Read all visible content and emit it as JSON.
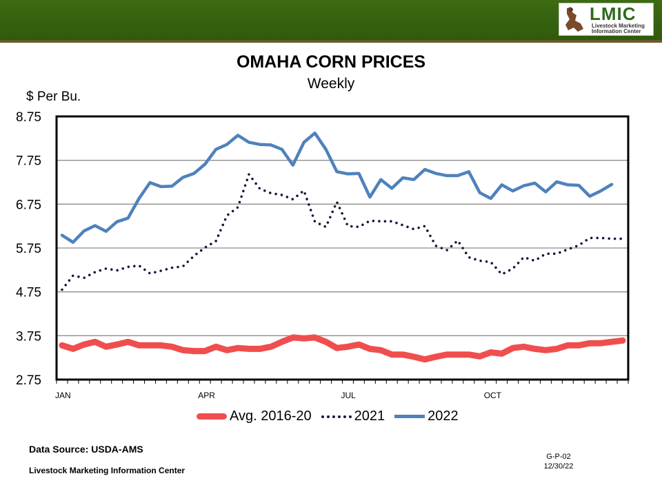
{
  "header": {
    "logo_text": "LMIC",
    "logo_subtext_1": "Livestock Marketing",
    "logo_subtext_2": "Information Center"
  },
  "chart_data": {
    "type": "line",
    "title": "OMAHA CORN PRICES",
    "subtitle": "Weekly",
    "ylabel": "$ Per Bu.",
    "ylim": [
      2.75,
      8.75
    ],
    "yticks": [
      "8.75",
      "7.75",
      "6.75",
      "5.75",
      "4.75",
      "3.75",
      "2.75"
    ],
    "xtick_labels": [
      {
        "label": "JAN",
        "week": 1
      },
      {
        "label": "APR",
        "week": 14
      },
      {
        "label": "JUL",
        "week": 27
      },
      {
        "label": "OCT",
        "week": 40
      }
    ],
    "weeks": 52,
    "grid": true,
    "legend": "bottom",
    "series": [
      {
        "name": "Avg. 2016-20",
        "color": "#f04e4e",
        "style": "thick",
        "values": [
          3.53,
          3.45,
          3.55,
          3.61,
          3.5,
          3.55,
          3.61,
          3.53,
          3.53,
          3.53,
          3.5,
          3.42,
          3.4,
          3.4,
          3.5,
          3.42,
          3.47,
          3.45,
          3.45,
          3.5,
          3.61,
          3.71,
          3.69,
          3.71,
          3.61,
          3.47,
          3.5,
          3.55,
          3.45,
          3.42,
          3.32,
          3.32,
          3.27,
          3.21,
          3.27,
          3.32,
          3.32,
          3.32,
          3.28,
          3.37,
          3.34,
          3.47,
          3.5,
          3.45,
          3.42,
          3.45,
          3.53,
          3.53,
          3.58,
          3.58,
          3.61,
          3.64
        ]
      },
      {
        "name": "2021",
        "color": "#0f1a3c",
        "style": "dotted",
        "values": [
          4.8,
          5.12,
          5.07,
          5.2,
          5.28,
          5.24,
          5.32,
          5.35,
          5.17,
          5.23,
          5.3,
          5.33,
          5.57,
          5.76,
          5.91,
          6.49,
          6.68,
          7.43,
          7.1,
          7.0,
          6.96,
          6.86,
          7.06,
          6.35,
          6.23,
          6.8,
          6.25,
          6.23,
          6.37,
          6.36,
          6.36,
          6.27,
          6.18,
          6.25,
          5.8,
          5.7,
          5.92,
          5.54,
          5.46,
          5.43,
          5.15,
          5.28,
          5.54,
          5.46,
          5.62,
          5.62,
          5.72,
          5.81,
          5.98,
          5.98,
          5.96,
          5.96
        ]
      },
      {
        "name": "2022",
        "color": "#4f81bd",
        "style": "solid",
        "values": [
          6.04,
          5.88,
          6.14,
          6.26,
          6.13,
          6.35,
          6.43,
          6.88,
          7.24,
          7.15,
          7.16,
          7.36,
          7.45,
          7.66,
          8.0,
          8.11,
          8.32,
          8.16,
          8.11,
          8.1,
          8.0,
          7.64,
          8.16,
          8.37,
          8.0,
          7.49,
          7.44,
          7.45,
          6.91,
          7.31,
          7.11,
          7.35,
          7.31,
          7.54,
          7.45,
          7.4,
          7.4,
          7.49,
          7.01,
          6.88,
          7.19,
          7.05,
          7.17,
          7.23,
          7.03,
          7.26,
          7.19,
          7.18,
          6.93,
          7.05,
          7.2,
          null
        ]
      }
    ]
  },
  "footer": {
    "source": "Data Source:  USDA-AMS",
    "org": "Livestock Marketing Information Center",
    "code": "G-P-02",
    "date": "12/30/22"
  }
}
